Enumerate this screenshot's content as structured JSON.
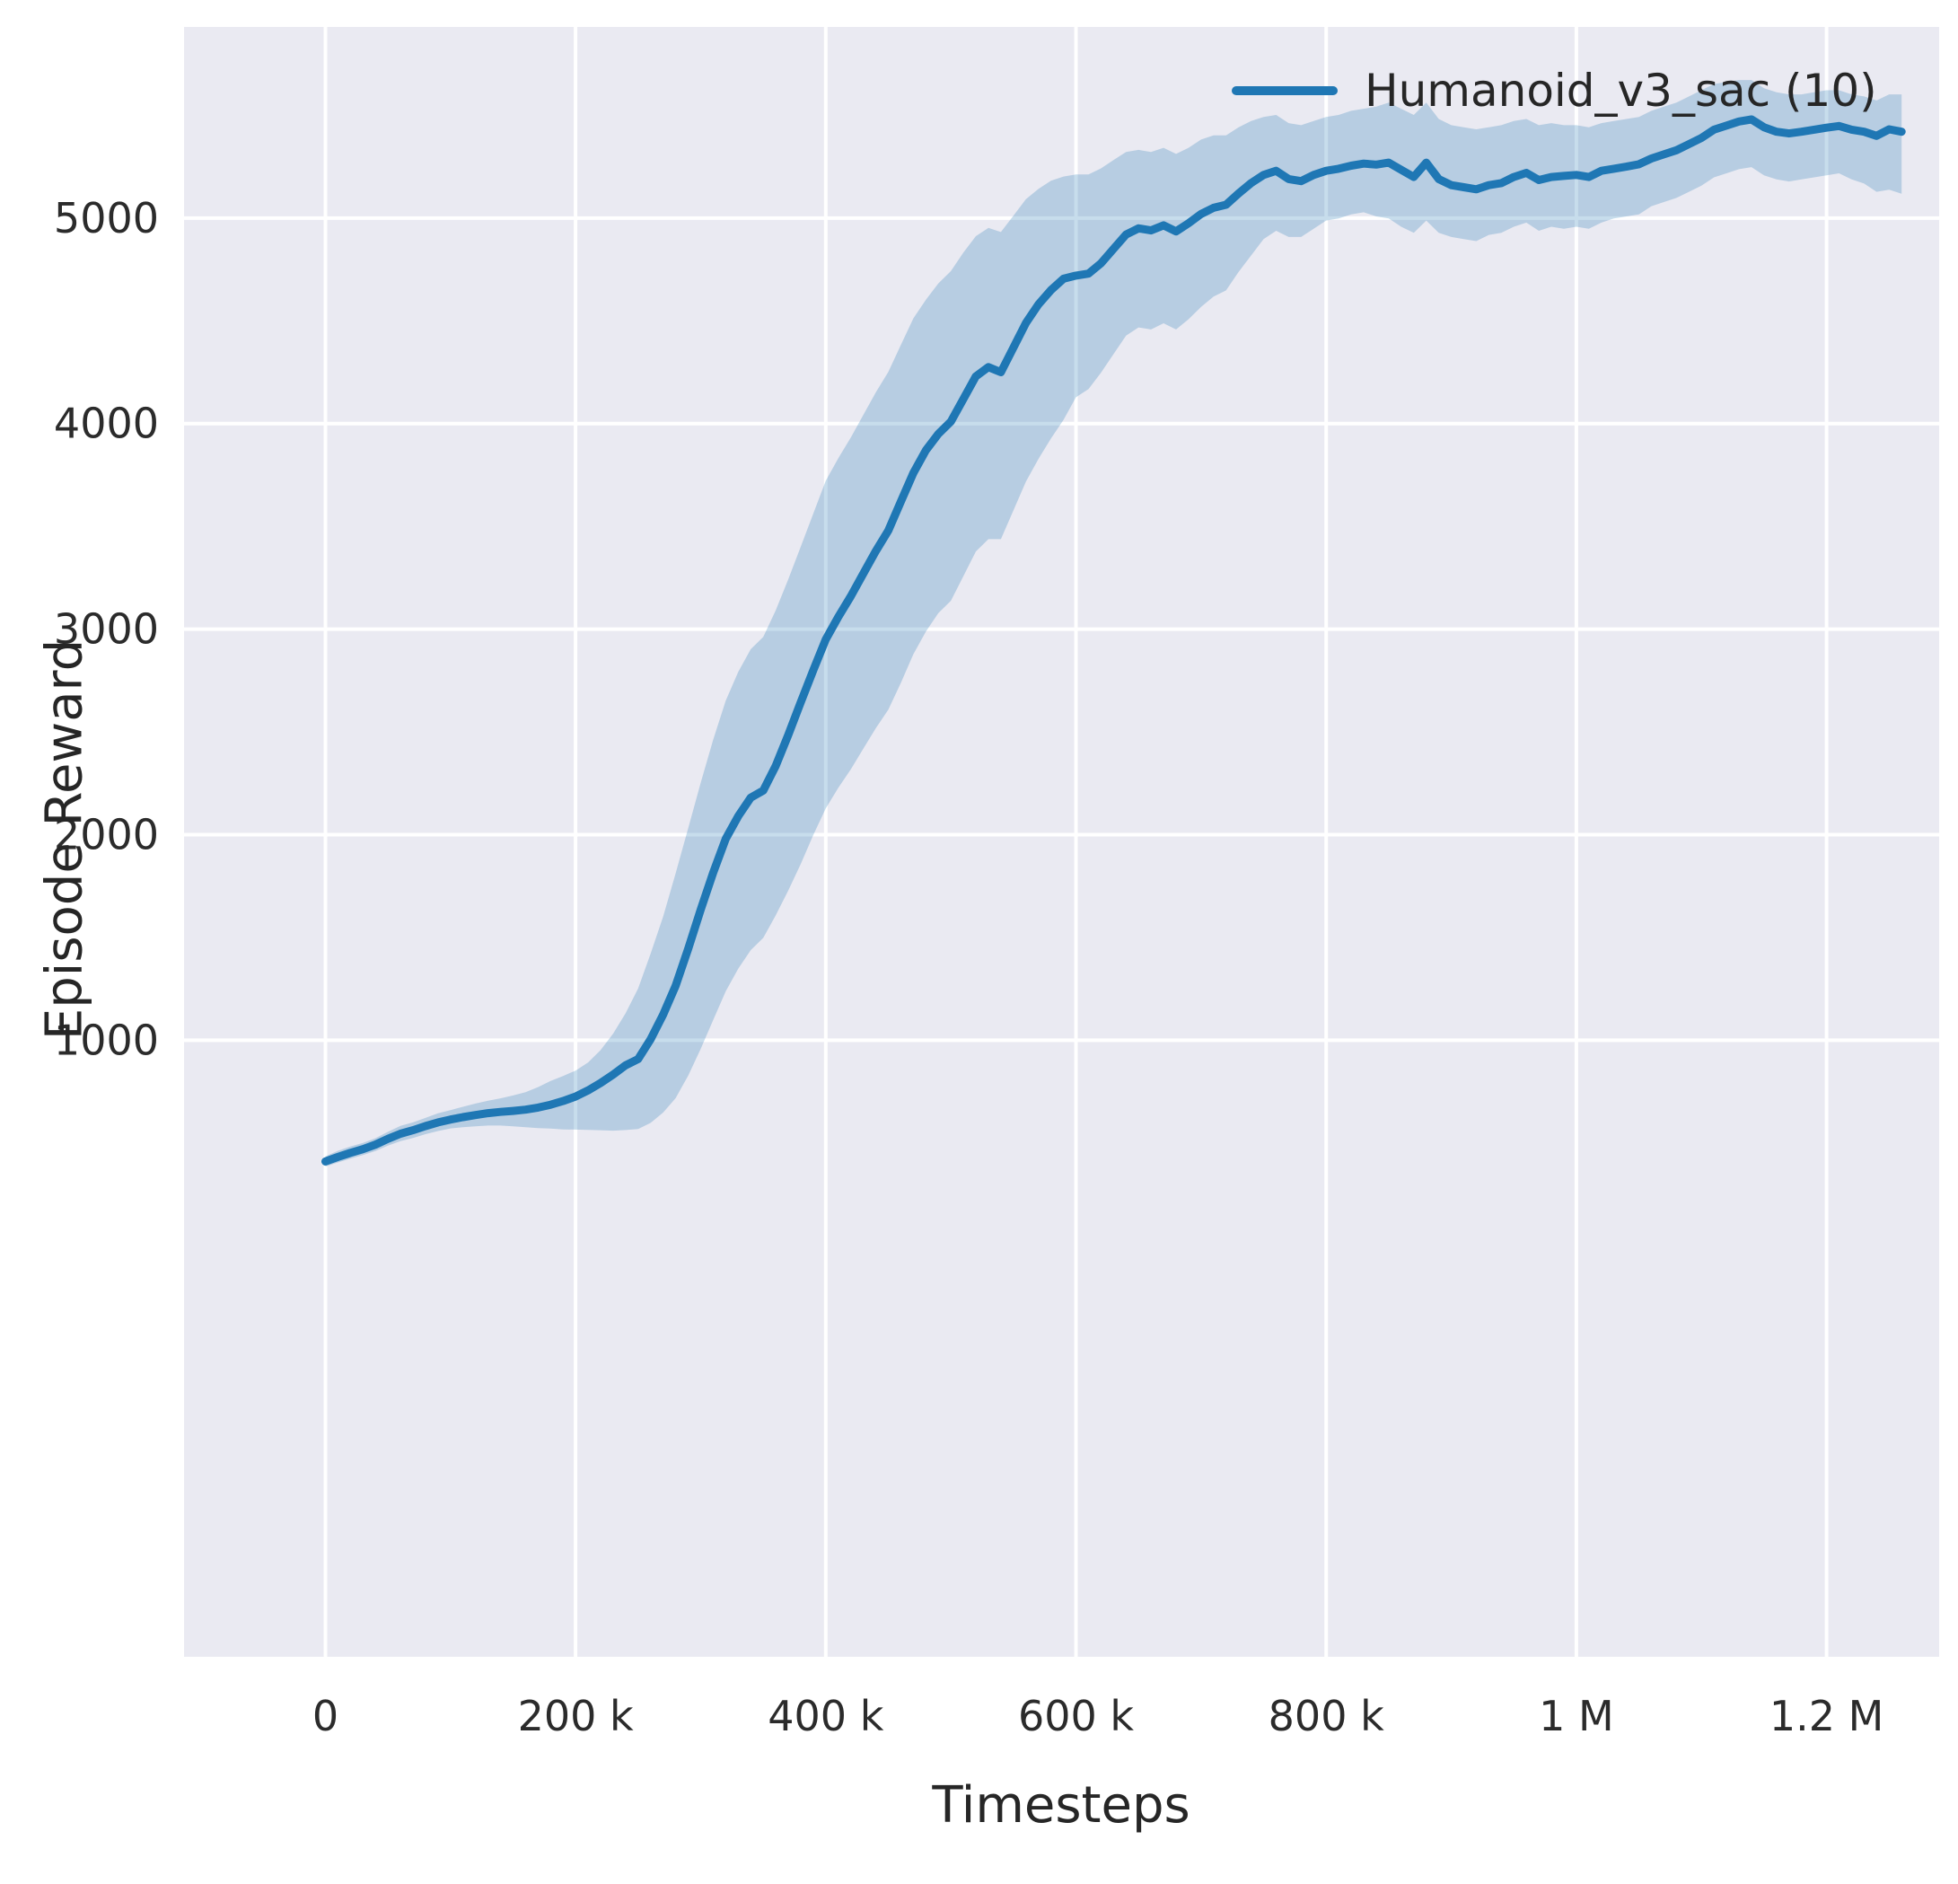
{
  "chart_data": {
    "type": "line",
    "title": "",
    "xlabel": "Timesteps",
    "ylabel": "Episode Reward",
    "x_units": "thousands of timesteps",
    "grid": true,
    "legend_position": "upper right",
    "xlim_thousands": [
      -113,
      1290
    ],
    "ylim": [
      -2000,
      5930
    ],
    "xticks": {
      "values_thousands": [
        0,
        200,
        400,
        600,
        800,
        1000,
        1200
      ],
      "labels": [
        "0",
        "200 k",
        "400 k",
        "600 k",
        "800 k",
        "1 M",
        "1.2 M"
      ]
    },
    "yticks": {
      "values": [
        1000,
        2000,
        3000,
        4000,
        5000
      ],
      "labels": [
        "1000",
        "2000",
        "3000",
        "4000",
        "5000"
      ]
    },
    "colors": {
      "line": "#1f77b4",
      "band": "#1f77b4",
      "band_opacity": 0.25,
      "plot_bg": "#eaeaf2",
      "grid": "#ffffff",
      "text": "#2b2b2b"
    },
    "series": [
      {
        "name": "Humanoid_v3_sac (10)",
        "x_thousands": [
          0,
          10,
          20,
          30,
          40,
          50,
          60,
          70,
          80,
          90,
          100,
          110,
          120,
          130,
          140,
          150,
          160,
          170,
          180,
          190,
          200,
          210,
          220,
          230,
          240,
          250,
          260,
          270,
          280,
          290,
          300,
          310,
          320,
          330,
          340,
          350,
          360,
          370,
          380,
          390,
          400,
          410,
          420,
          430,
          440,
          450,
          460,
          470,
          480,
          490,
          500,
          510,
          520,
          530,
          540,
          550,
          560,
          570,
          580,
          590,
          600,
          610,
          620,
          630,
          640,
          650,
          660,
          670,
          680,
          690,
          700,
          710,
          720,
          730,
          740,
          750,
          760,
          770,
          780,
          790,
          800,
          810,
          820,
          830,
          840,
          850,
          860,
          870,
          880,
          890,
          900,
          910,
          920,
          930,
          940,
          950,
          960,
          970,
          980,
          990,
          1000,
          1010,
          1020,
          1030,
          1040,
          1050,
          1060,
          1070,
          1080,
          1090,
          1100,
          1110,
          1120,
          1130,
          1140,
          1150,
          1160,
          1170,
          1180,
          1190,
          1200,
          1210,
          1220,
          1230,
          1240,
          1250,
          1260
        ],
        "mean": [
          410,
          432,
          452,
          470,
          492,
          520,
          545,
          562,
          582,
          600,
          614,
          626,
          636,
          645,
          651,
          656,
          662,
          672,
          686,
          704,
          726,
          756,
          792,
          833,
          878,
          908,
          1005,
          1125,
          1265,
          1445,
          1635,
          1815,
          1980,
          2090,
          2180,
          2215,
          2335,
          2485,
          2645,
          2800,
          2950,
          3060,
          3160,
          3270,
          3380,
          3480,
          3620,
          3760,
          3870,
          3950,
          4010,
          4120,
          4230,
          4275,
          4250,
          4370,
          4490,
          4580,
          4650,
          4705,
          4720,
          4730,
          4780,
          4850,
          4920,
          4950,
          4940,
          4965,
          4935,
          4975,
          5020,
          5050,
          5065,
          5120,
          5170,
          5210,
          5230,
          5190,
          5180,
          5210,
          5230,
          5240,
          5255,
          5265,
          5260,
          5270,
          5235,
          5200,
          5270,
          5190,
          5160,
          5150,
          5140,
          5160,
          5170,
          5200,
          5220,
          5185,
          5200,
          5205,
          5210,
          5200,
          5230,
          5240,
          5250,
          5262,
          5290,
          5310,
          5330,
          5360,
          5390,
          5430,
          5450,
          5470,
          5480,
          5442,
          5420,
          5412,
          5420,
          5430,
          5440,
          5448,
          5430,
          5420,
          5400,
          5432,
          5420
        ],
        "band_low": [
          385,
          405,
          424,
          441,
          461,
          487,
          509,
          524,
          543,
          558,
          571,
          577,
          581,
          585,
          585,
          581,
          577,
          572,
          570,
          566,
          565,
          564,
          562,
          560,
          563,
          568,
          598,
          648,
          718,
          828,
          958,
          1098,
          1238,
          1348,
          1438,
          1498,
          1608,
          1728,
          1858,
          1998,
          2128,
          2228,
          2318,
          2418,
          2518,
          2608,
          2738,
          2878,
          2988,
          3078,
          3138,
          3258,
          3378,
          3438,
          3438,
          3578,
          3718,
          3828,
          3928,
          4018,
          4128,
          4168,
          4248,
          4338,
          4428,
          4468,
          4458,
          4488,
          4458,
          4508,
          4568,
          4618,
          4648,
          4738,
          4818,
          4898,
          4938,
          4908,
          4908,
          4948,
          4988,
          4998,
          5018,
          5028,
          5008,
          4998,
          4958,
          4928,
          4988,
          4928,
          4908,
          4898,
          4888,
          4918,
          4928,
          4958,
          4978,
          4938,
          4958,
          4948,
          4958,
          4948,
          4978,
          4998,
          5008,
          5018,
          5058,
          5078,
          5098,
          5128,
          5158,
          5198,
          5218,
          5238,
          5248,
          5208,
          5188,
          5178,
          5188,
          5198,
          5208,
          5218,
          5188,
          5168,
          5128,
          5138,
          5118
        ],
        "band_high": [
          435,
          462,
          483,
          500,
          523,
          554,
          583,
          600,
          622,
          644,
          660,
          676,
          692,
          706,
          717,
          731,
          747,
          772,
          802,
          826,
          852,
          892,
          952,
          1032,
          1132,
          1252,
          1422,
          1602,
          1812,
          2032,
          2252,
          2462,
          2652,
          2792,
          2902,
          2962,
          3092,
          3242,
          3402,
          3562,
          3722,
          3832,
          3932,
          4042,
          4152,
          4252,
          4382,
          4512,
          4602,
          4682,
          4742,
          4832,
          4912,
          4952,
          4932,
          5012,
          5092,
          5142,
          5182,
          5202,
          5212,
          5212,
          5242,
          5282,
          5322,
          5332,
          5322,
          5342,
          5312,
          5342,
          5382,
          5402,
          5402,
          5442,
          5472,
          5492,
          5502,
          5462,
          5452,
          5472,
          5492,
          5502,
          5522,
          5532,
          5542,
          5562,
          5532,
          5502,
          5562,
          5482,
          5452,
          5442,
          5432,
          5442,
          5452,
          5472,
          5482,
          5452,
          5462,
          5452,
          5452,
          5442,
          5462,
          5472,
          5482,
          5492,
          5522,
          5542,
          5562,
          5592,
          5622,
          5652,
          5662,
          5672,
          5672,
          5632,
          5612,
          5602,
          5602,
          5612,
          5622,
          5622,
          5602,
          5592,
          5572,
          5602,
          5602
        ]
      }
    ]
  }
}
